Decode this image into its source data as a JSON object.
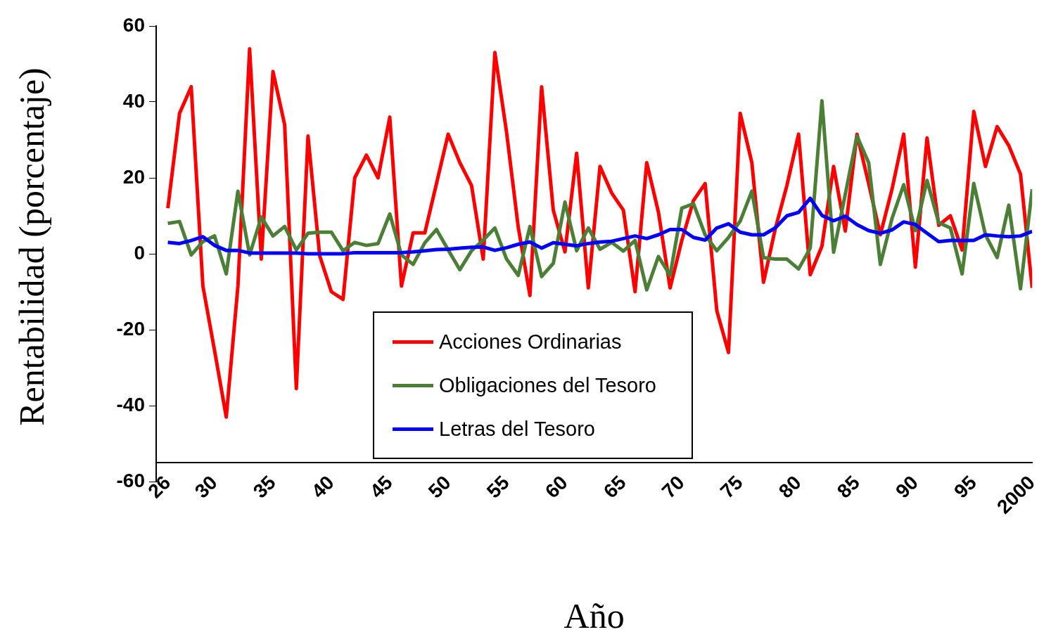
{
  "chart_data": {
    "type": "line",
    "xlabel": "Año",
    "ylabel": "Rentabilidad (porcentaje)",
    "x": [
      1926,
      1927,
      1928,
      1929,
      1930,
      1931,
      1932,
      1933,
      1934,
      1935,
      1936,
      1937,
      1938,
      1939,
      1940,
      1941,
      1942,
      1943,
      1944,
      1945,
      1946,
      1947,
      1948,
      1949,
      1950,
      1951,
      1952,
      1953,
      1954,
      1955,
      1956,
      1957,
      1958,
      1959,
      1960,
      1961,
      1962,
      1963,
      1964,
      1965,
      1966,
      1967,
      1968,
      1969,
      1970,
      1971,
      1972,
      1973,
      1974,
      1975,
      1976,
      1977,
      1978,
      1979,
      1980,
      1981,
      1982,
      1983,
      1984,
      1985,
      1986,
      1987,
      1988,
      1989,
      1990,
      1991,
      1992,
      1993,
      1994,
      1995,
      1996,
      1997,
      1998,
      1999,
      2000
    ],
    "series": [
      {
        "name": "Acciones Ordinarias",
        "color": "#ff0000",
        "values": [
          12,
          37,
          44,
          -8.5,
          -25.5,
          -43,
          -8.5,
          54,
          -1.4,
          48,
          34,
          -35.5,
          31,
          -0.5,
          -10,
          -12,
          20,
          26,
          20,
          36,
          -8.5,
          5.5,
          5.5,
          18.5,
          31.5,
          24,
          18,
          -1.4,
          53,
          32,
          7,
          -11,
          44,
          11.5,
          0.5,
          26.5,
          -9,
          23,
          16,
          11.5,
          -10,
          24,
          11,
          -9,
          3.5,
          14,
          18.5,
          -15,
          -26,
          37,
          24,
          -7.5,
          6.5,
          18,
          31.5,
          -5.5,
          2,
          23,
          6,
          31.5,
          18.5,
          5,
          17,
          31.5,
          -3.5,
          30.5,
          7.5,
          10,
          1,
          37.5,
          23,
          33.5,
          28.5,
          21,
          -9
        ]
      },
      {
        "name": "Obligaciones del Tesoro",
        "color": "#4a7f35",
        "values": [
          8,
          8.5,
          -0.3,
          3.2,
          4.7,
          -5.3,
          16.5,
          -0.3,
          9.7,
          4.7,
          7.2,
          1,
          5.4,
          5.7,
          5.7,
          0.8,
          3,
          2.2,
          2.7,
          10.5,
          -0.3,
          -2.8,
          2.9,
          6.4,
          1,
          -4.2,
          0.8,
          3.6,
          6.8,
          -1.4,
          -5.7,
          7.2,
          -6,
          -2.5,
          13.6,
          0.8,
          6.8,
          1.2,
          3,
          0.7,
          3.5,
          -9.5,
          -0.7,
          -5.7,
          12,
          13.2,
          5,
          0.8,
          4.3,
          8.6,
          16.5,
          -1,
          -1.4,
          -1.4,
          -4,
          1.5,
          40.3,
          0.4,
          15.7,
          31,
          24,
          -2.8,
          9.3,
          18.2,
          6.1,
          19.3,
          8.2,
          6.8,
          -5.3,
          18.5,
          5,
          -1,
          12.8,
          -9.2,
          17
        ]
      },
      {
        "name": "Letras del Tesoro",
        "color": "#0000ff",
        "values": [
          3,
          2.7,
          3.5,
          4.5,
          2.2,
          0.9,
          0.9,
          0.2,
          0.2,
          0.2,
          0.2,
          0.2,
          0,
          0,
          0,
          0,
          0.3,
          0.3,
          0.3,
          0.3,
          0.3,
          0.5,
          0.8,
          1.1,
          1.2,
          1.5,
          1.7,
          1.8,
          0.9,
          1.6,
          2.5,
          3.1,
          1.5,
          2.9,
          2.5,
          2.1,
          2.7,
          3.1,
          3.3,
          4,
          4.7,
          4,
          5,
          6.4,
          6.4,
          4.3,
          3.6,
          6.8,
          7.9,
          5.7,
          5,
          5,
          6.8,
          10,
          10.9,
          14.6,
          10.1,
          8.7,
          9.9,
          7.7,
          6.1,
          5.4,
          6.3,
          8.4,
          7.7,
          5.4,
          3.2,
          3.5,
          3.5,
          3.5,
          5,
          4.7,
          4.5,
          4.7,
          5.9
        ]
      }
    ],
    "xlim": [
      1925,
      2000
    ],
    "xticks": [
      {
        "value": 1926,
        "label": "26"
      },
      {
        "value": 1930,
        "label": "30"
      },
      {
        "value": 1935,
        "label": "35"
      },
      {
        "value": 1940,
        "label": "40"
      },
      {
        "value": 1945,
        "label": "45"
      },
      {
        "value": 1950,
        "label": "50"
      },
      {
        "value": 1955,
        "label": "55"
      },
      {
        "value": 1960,
        "label": "60"
      },
      {
        "value": 1965,
        "label": "65"
      },
      {
        "value": 1970,
        "label": "70"
      },
      {
        "value": 1975,
        "label": "75"
      },
      {
        "value": 1980,
        "label": "80"
      },
      {
        "value": 1985,
        "label": "85"
      },
      {
        "value": 1990,
        "label": "90"
      },
      {
        "value": 1995,
        "label": "95"
      },
      2000
    ],
    "ylim": [
      -60,
      60
    ],
    "yticks": [
      -60,
      -40,
      -20,
      0,
      20,
      40,
      60
    ],
    "legend": "bottom",
    "grid": false,
    "marker": "none",
    "line_style": "solid"
  }
}
